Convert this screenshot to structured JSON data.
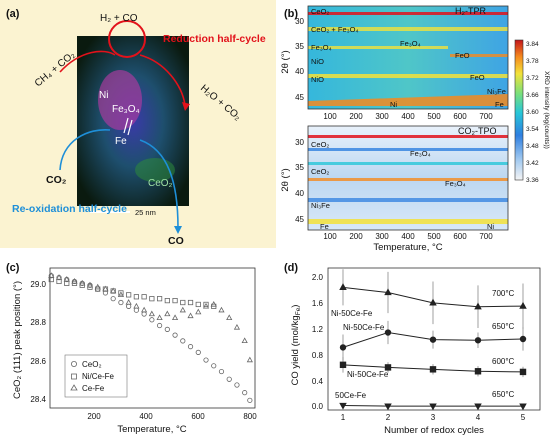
{
  "panels": {
    "a": {
      "label": "(a)",
      "reduction": "Reduction half-cycle",
      "reoxidation": "Re-oxidation half-cycle",
      "h2co": "H₂ + CO",
      "ch4co2": "CH₄ + CO₂",
      "h2oco2": "H₂O + CO₂",
      "co2": "CO₂",
      "co": "CO",
      "ni": "Ni",
      "fe3o4": "Fe₃O₄",
      "fe": "Fe",
      "ceo2": "CeO₂",
      "scale": "25 nm"
    },
    "b": {
      "label": "(b)",
      "top_title": "H₂-TPR",
      "bottom_title": "CO₂-TPO",
      "ylabel": "2θ (°)",
      "xlabel": "Temperature, °C",
      "xticks": [
        "100",
        "200",
        "300",
        "400",
        "500",
        "600",
        "700"
      ],
      "top_yticks": [
        "30",
        "35",
        "40",
        "45"
      ],
      "bottom_yticks": [
        "30",
        "35",
        "40",
        "45"
      ],
      "top_labels": [
        "CeO₂",
        "CeO₂ + Fe₃O₄",
        "Fe₃O₄",
        "Fe₃O₄",
        "NiO",
        "FeO",
        "FeO",
        "NiO",
        "Ni₃Fe",
        "Ni",
        "Fe"
      ],
      "bottom_labels": [
        "CeO₂",
        "Fe₃O₄",
        "CeO₂",
        "Fe₃O₄",
        "Ni₃Fe",
        "Fe",
        "Ni"
      ],
      "colorbar_ticks": [
        "3.84",
        "3.78",
        "3.72",
        "3.66",
        "3.60",
        "3.54",
        "3.48",
        "3.42",
        "3.36"
      ],
      "colorbar_label": "XRD intensity (log(counts))"
    },
    "c": {
      "label": "(c)",
      "ylabel": "CeO₂ (111) peak position (°)",
      "xlabel": "Temperature, °C",
      "yticks": [
        "29.0",
        "28.8",
        "28.6",
        "28.4"
      ],
      "xticks": [
        "200",
        "400",
        "600",
        "800"
      ],
      "legend": [
        "CeO₂",
        "Ni/Ce-Fe",
        "Ce-Fe"
      ]
    },
    "d": {
      "label": "(d)",
      "ylabel": "CO yield (mol/kg",
      "ylabel_sub": "Fe",
      "ylabel_end": ")",
      "xlabel": "Number of redox cycles",
      "yticks": [
        "0.0",
        "0.4",
        "0.8",
        "1.2",
        "1.6",
        "2.0"
      ],
      "xticks": [
        "1",
        "2",
        "3",
        "4",
        "5"
      ],
      "series_labels": [
        "Ni-50Ce-Fe",
        "Ni-50Ce-Fe",
        "Ni-50Ce-Fe",
        "50Ce-Fe"
      ],
      "temp_labels": [
        "700°C",
        "650°C",
        "600°C",
        "650°C"
      ]
    }
  },
  "chart_data": [
    {
      "type": "scatter",
      "panel": "c",
      "xlabel": "Temperature, °C",
      "ylabel": "CeO₂ (111) peak position (°)",
      "xlim": [
        25,
        820
      ],
      "ylim": [
        28.33,
        29.06
      ],
      "series": [
        {
          "name": "CeO₂",
          "marker": "circle",
          "x": [
            30,
            60,
            90,
            120,
            150,
            180,
            210,
            240,
            270,
            300,
            330,
            360,
            390,
            420,
            450,
            480,
            510,
            540,
            570,
            600,
            630,
            660,
            690,
            720,
            750,
            780,
            800
          ],
          "y": [
            29.02,
            29.01,
            29.0,
            28.99,
            28.98,
            28.97,
            28.95,
            28.93,
            28.9,
            28.88,
            28.86,
            28.84,
            28.82,
            28.79,
            28.76,
            28.74,
            28.71,
            28.68,
            28.65,
            28.62,
            28.58,
            28.55,
            28.52,
            28.48,
            28.45,
            28.41,
            28.37
          ]
        },
        {
          "name": "Ni/Ce-Fe",
          "marker": "square",
          "x": [
            30,
            60,
            90,
            120,
            150,
            180,
            210,
            240,
            270,
            300,
            330,
            360,
            390,
            420,
            450,
            480,
            510,
            540,
            570,
            600,
            630,
            660
          ],
          "y": [
            29.0,
            28.99,
            28.98,
            28.98,
            28.97,
            28.96,
            28.95,
            28.95,
            28.94,
            28.93,
            28.92,
            28.91,
            28.91,
            28.9,
            28.9,
            28.89,
            28.89,
            28.88,
            28.88,
            28.87,
            28.87,
            28.86
          ]
        },
        {
          "name": "Ce-Fe",
          "marker": "triangle",
          "x": [
            30,
            60,
            90,
            120,
            150,
            180,
            210,
            240,
            270,
            300,
            330,
            360,
            390,
            420,
            450,
            480,
            510,
            540,
            570,
            600,
            630,
            660,
            690,
            720,
            750,
            780,
            800
          ],
          "y": [
            29.02,
            29.01,
            29.0,
            28.99,
            28.98,
            28.97,
            28.96,
            28.95,
            28.94,
            28.92,
            28.88,
            28.86,
            28.84,
            28.82,
            28.8,
            28.82,
            28.8,
            28.84,
            28.81,
            28.83,
            28.86,
            28.87,
            28.84,
            28.8,
            28.75,
            28.68,
            28.58
          ]
        }
      ]
    },
    {
      "type": "line",
      "panel": "d",
      "xlabel": "Number of redox cycles",
      "ylabel": "CO yield (mol/kg Fe)",
      "x": [
        1,
        2,
        3,
        4,
        5
      ],
      "ylim": [
        0,
        2.2
      ],
      "series": [
        {
          "name": "Ni-50Ce-Fe 700°C",
          "marker": "triangle",
          "values": [
            1.9,
            1.82,
            1.66,
            1.6,
            1.61
          ],
          "errors": [
            0.28,
            0.32,
            0.33,
            0.33,
            0.35
          ]
        },
        {
          "name": "Ni-50Ce-Fe 650°C",
          "marker": "circle",
          "values": [
            0.97,
            1.2,
            1.09,
            1.08,
            1.1
          ],
          "errors": [
            0.2,
            0.18,
            0.14,
            0.12,
            0.18
          ]
        },
        {
          "name": "Ni-50Ce-Fe 600°C",
          "marker": "square",
          "values": [
            0.7,
            0.66,
            0.63,
            0.6,
            0.59
          ],
          "errors": [
            0.12,
            0.08,
            0.08,
            0.08,
            0.08
          ]
        },
        {
          "name": "50Ce-Fe 650°C",
          "marker": "triangle-down",
          "values": [
            0.07,
            0.06,
            0.06,
            0.06,
            0.06
          ],
          "errors": [
            0.01,
            0.01,
            0.01,
            0.01,
            0.01
          ]
        }
      ]
    }
  ]
}
